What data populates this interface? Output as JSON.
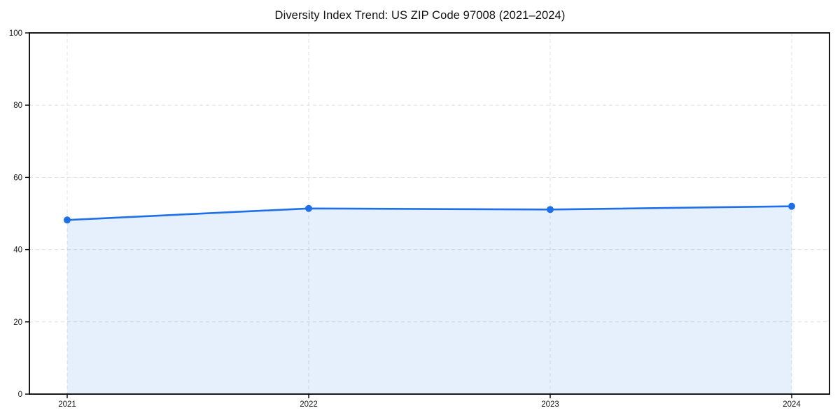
{
  "chart_data": {
    "type": "area",
    "title": "Diversity Index Trend: US ZIP Code 97008 (2021–2024)",
    "categories": [
      "2021",
      "2022",
      "2023",
      "2024"
    ],
    "series": [
      {
        "name": "Diversity Index",
        "values": [
          48.2,
          51.4,
          51.1,
          52.0
        ]
      }
    ],
    "xlabel": "",
    "ylabel": "",
    "ylim": [
      0,
      100
    ],
    "y_ticks": [
      0,
      20,
      40,
      60,
      80,
      100
    ],
    "grid": "dashed-both-axes",
    "legend": "none",
    "marker": "circle",
    "colors": {
      "line": "#1e70e8",
      "marker": "#1e70e8",
      "fill": "#1e70e8",
      "fill_opacity": 0.11,
      "grid": "#e0e0e0",
      "axis": "#000000",
      "title_text": "#111111",
      "tick_text": "#1a1a1a",
      "background": "#ffffff"
    }
  }
}
